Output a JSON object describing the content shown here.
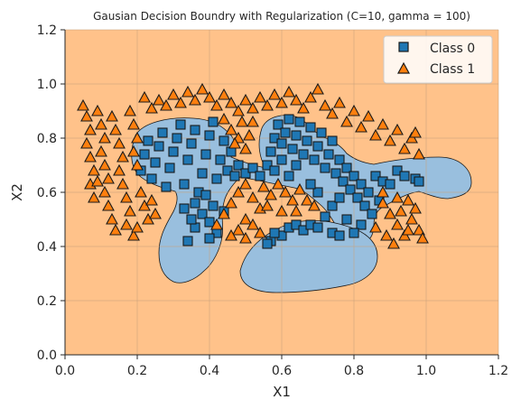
{
  "chart_data": {
    "type": "scatter",
    "title": "Gausian Decision Boundry with Regularization (C=10, gamma = 100)",
    "xlabel": "X1",
    "ylabel": "X2",
    "xlim": [
      0.0,
      1.2
    ],
    "ylim": [
      0.0,
      1.2
    ],
    "x_ticks": [
      "0.0",
      "0.2",
      "0.4",
      "0.6",
      "0.8",
      "1.0",
      "1.2"
    ],
    "y_ticks": [
      "0.0",
      "0.2",
      "0.4",
      "0.6",
      "0.8",
      "1.0",
      "1.2"
    ],
    "grid": true,
    "legend_position": "top-right",
    "background_region_color": "#ffc28a",
    "class0_region_color": "#99bfde",
    "series": [
      {
        "name": "Class 0",
        "marker": "square",
        "color": "#1f77b4",
        "points": [
          [
            0.21,
            0.68
          ],
          [
            0.22,
            0.74
          ],
          [
            0.23,
            0.79
          ],
          [
            0.24,
            0.65
          ],
          [
            0.25,
            0.71
          ],
          [
            0.26,
            0.77
          ],
          [
            0.27,
            0.82
          ],
          [
            0.28,
            0.62
          ],
          [
            0.29,
            0.69
          ],
          [
            0.3,
            0.75
          ],
          [
            0.31,
            0.8
          ],
          [
            0.32,
            0.85
          ],
          [
            0.33,
            0.63
          ],
          [
            0.34,
            0.72
          ],
          [
            0.35,
            0.78
          ],
          [
            0.36,
            0.83
          ],
          [
            0.37,
            0.6
          ],
          [
            0.38,
            0.67
          ],
          [
            0.39,
            0.74
          ],
          [
            0.4,
            0.81
          ],
          [
            0.41,
            0.86
          ],
          [
            0.42,
            0.65
          ],
          [
            0.43,
            0.72
          ],
          [
            0.44,
            0.79
          ],
          [
            0.45,
            0.68
          ],
          [
            0.46,
            0.75
          ],
          [
            0.47,
            0.66
          ],
          [
            0.48,
            0.7
          ],
          [
            0.36,
            0.56
          ],
          [
            0.38,
            0.52
          ],
          [
            0.4,
            0.49
          ],
          [
            0.42,
            0.45
          ],
          [
            0.34,
            0.42
          ],
          [
            0.36,
            0.47
          ],
          [
            0.4,
            0.43
          ],
          [
            0.41,
            0.55
          ],
          [
            0.44,
            0.53
          ],
          [
            0.39,
            0.59
          ],
          [
            0.33,
            0.54
          ],
          [
            0.35,
            0.5
          ],
          [
            0.5,
            0.67
          ],
          [
            0.52,
            0.69
          ],
          [
            0.54,
            0.66
          ],
          [
            0.56,
            0.7
          ],
          [
            0.58,
            0.68
          ],
          [
            0.6,
            0.72
          ],
          [
            0.62,
            0.66
          ],
          [
            0.64,
            0.7
          ],
          [
            0.57,
            0.75
          ],
          [
            0.58,
            0.8
          ],
          [
            0.59,
            0.85
          ],
          [
            0.6,
            0.78
          ],
          [
            0.61,
            0.82
          ],
          [
            0.62,
            0.87
          ],
          [
            0.63,
            0.76
          ],
          [
            0.64,
            0.81
          ],
          [
            0.65,
            0.86
          ],
          [
            0.66,
            0.74
          ],
          [
            0.67,
            0.79
          ],
          [
            0.68,
            0.84
          ],
          [
            0.69,
            0.72
          ],
          [
            0.7,
            0.77
          ],
          [
            0.71,
            0.82
          ],
          [
            0.72,
            0.69
          ],
          [
            0.73,
            0.74
          ],
          [
            0.74,
            0.79
          ],
          [
            0.75,
            0.67
          ],
          [
            0.76,
            0.72
          ],
          [
            0.77,
            0.64
          ],
          [
            0.78,
            0.69
          ],
          [
            0.79,
            0.61
          ],
          [
            0.8,
            0.66
          ],
          [
            0.81,
            0.58
          ],
          [
            0.82,
            0.63
          ],
          [
            0.83,
            0.55
          ],
          [
            0.84,
            0.6
          ],
          [
            0.85,
            0.52
          ],
          [
            0.82,
            0.48
          ],
          [
            0.8,
            0.45
          ],
          [
            0.78,
            0.5
          ],
          [
            0.86,
            0.66
          ],
          [
            0.88,
            0.64
          ],
          [
            0.9,
            0.63
          ],
          [
            0.92,
            0.68
          ],
          [
            0.94,
            0.66
          ],
          [
            0.97,
            0.65
          ],
          [
            0.98,
            0.64
          ],
          [
            0.87,
            0.57
          ],
          [
            0.57,
            0.42
          ],
          [
            0.6,
            0.44
          ],
          [
            0.62,
            0.47
          ],
          [
            0.64,
            0.48
          ],
          [
            0.66,
            0.46
          ],
          [
            0.68,
            0.48
          ],
          [
            0.7,
            0.47
          ],
          [
            0.56,
            0.41
          ],
          [
            0.58,
            0.45
          ],
          [
            0.74,
            0.45
          ],
          [
            0.76,
            0.44
          ],
          [
            0.72,
            0.51
          ],
          [
            0.74,
            0.55
          ],
          [
            0.76,
            0.58
          ],
          [
            0.7,
            0.6
          ],
          [
            0.68,
            0.63
          ]
        ]
      },
      {
        "name": "Class 1",
        "marker": "triangle",
        "color": "#ff7f0e",
        "points": [
          [
            0.05,
            0.92
          ],
          [
            0.06,
            0.88
          ],
          [
            0.07,
            0.83
          ],
          [
            0.06,
            0.78
          ],
          [
            0.07,
            0.73
          ],
          [
            0.08,
            0.68
          ],
          [
            0.07,
            0.63
          ],
          [
            0.08,
            0.58
          ],
          [
            0.09,
            0.9
          ],
          [
            0.1,
            0.85
          ],
          [
            0.11,
            0.8
          ],
          [
            0.1,
            0.75
          ],
          [
            0.11,
            0.7
          ],
          [
            0.12,
            0.65
          ],
          [
            0.11,
            0.6
          ],
          [
            0.12,
            0.55
          ],
          [
            0.13,
            0.5
          ],
          [
            0.14,
            0.46
          ],
          [
            0.13,
            0.88
          ],
          [
            0.14,
            0.83
          ],
          [
            0.15,
            0.78
          ],
          [
            0.16,
            0.73
          ],
          [
            0.15,
            0.68
          ],
          [
            0.16,
            0.63
          ],
          [
            0.17,
            0.58
          ],
          [
            0.18,
            0.53
          ],
          [
            0.17,
            0.48
          ],
          [
            0.19,
            0.44
          ],
          [
            0.18,
            0.9
          ],
          [
            0.19,
            0.85
          ],
          [
            0.2,
            0.8
          ],
          [
            0.19,
            0.75
          ],
          [
            0.2,
            0.7
          ],
          [
            0.21,
            0.6
          ],
          [
            0.22,
            0.55
          ],
          [
            0.23,
            0.5
          ],
          [
            0.2,
            0.47
          ],
          [
            0.24,
            0.57
          ],
          [
            0.25,
            0.52
          ],
          [
            0.09,
            0.64
          ],
          [
            0.22,
            0.95
          ],
          [
            0.24,
            0.91
          ],
          [
            0.26,
            0.94
          ],
          [
            0.28,
            0.92
          ],
          [
            0.3,
            0.96
          ],
          [
            0.32,
            0.93
          ],
          [
            0.34,
            0.97
          ],
          [
            0.36,
            0.94
          ],
          [
            0.38,
            0.98
          ],
          [
            0.4,
            0.95
          ],
          [
            0.42,
            0.92
          ],
          [
            0.44,
            0.96
          ],
          [
            0.46,
            0.93
          ],
          [
            0.48,
            0.9
          ],
          [
            0.5,
            0.94
          ],
          [
            0.52,
            0.91
          ],
          [
            0.54,
            0.95
          ],
          [
            0.56,
            0.92
          ],
          [
            0.58,
            0.96
          ],
          [
            0.6,
            0.93
          ],
          [
            0.62,
            0.97
          ],
          [
            0.64,
            0.94
          ],
          [
            0.66,
            0.91
          ],
          [
            0.68,
            0.95
          ],
          [
            0.7,
            0.98
          ],
          [
            0.72,
            0.92
          ],
          [
            0.74,
            0.89
          ],
          [
            0.76,
            0.93
          ],
          [
            0.78,
            0.86
          ],
          [
            0.8,
            0.9
          ],
          [
            0.82,
            0.84
          ],
          [
            0.84,
            0.88
          ],
          [
            0.86,
            0.81
          ],
          [
            0.88,
            0.85
          ],
          [
            0.9,
            0.79
          ],
          [
            0.92,
            0.83
          ],
          [
            0.94,
            0.76
          ],
          [
            0.96,
            0.8
          ],
          [
            0.98,
            0.74
          ],
          [
            0.97,
            0.82
          ],
          [
            0.44,
            0.87
          ],
          [
            0.46,
            0.83
          ],
          [
            0.48,
            0.8
          ],
          [
            0.5,
            0.76
          ],
          [
            0.49,
            0.86
          ],
          [
            0.51,
            0.81
          ],
          [
            0.47,
            0.78
          ],
          [
            0.52,
            0.86
          ],
          [
            0.42,
            0.48
          ],
          [
            0.44,
            0.52
          ],
          [
            0.46,
            0.56
          ],
          [
            0.48,
            0.6
          ],
          [
            0.5,
            0.63
          ],
          [
            0.52,
            0.58
          ],
          [
            0.54,
            0.54
          ],
          [
            0.5,
            0.5
          ],
          [
            0.48,
            0.46
          ],
          [
            0.46,
            0.44
          ],
          [
            0.52,
            0.48
          ],
          [
            0.55,
            0.62
          ],
          [
            0.57,
            0.59
          ],
          [
            0.59,
            0.63
          ],
          [
            0.61,
            0.6
          ],
          [
            0.63,
            0.57
          ],
          [
            0.65,
            0.61
          ],
          [
            0.67,
            0.57
          ],
          [
            0.69,
            0.55
          ],
          [
            0.56,
            0.55
          ],
          [
            0.6,
            0.53
          ],
          [
            0.64,
            0.53
          ],
          [
            0.54,
            0.45
          ],
          [
            0.5,
            0.43
          ],
          [
            0.88,
            0.56
          ],
          [
            0.9,
            0.52
          ],
          [
            0.92,
            0.48
          ],
          [
            0.94,
            0.44
          ],
          [
            0.96,
            0.5
          ],
          [
            0.98,
            0.46
          ],
          [
            0.92,
            0.58
          ],
          [
            0.95,
            0.57
          ],
          [
            0.97,
            0.54
          ],
          [
            0.89,
            0.44
          ],
          [
            0.93,
            0.53
          ],
          [
            0.99,
            0.43
          ],
          [
            0.91,
            0.41
          ],
          [
            0.95,
            0.46
          ],
          [
            0.86,
            0.47
          ],
          [
            0.88,
            0.6
          ]
        ]
      }
    ]
  }
}
